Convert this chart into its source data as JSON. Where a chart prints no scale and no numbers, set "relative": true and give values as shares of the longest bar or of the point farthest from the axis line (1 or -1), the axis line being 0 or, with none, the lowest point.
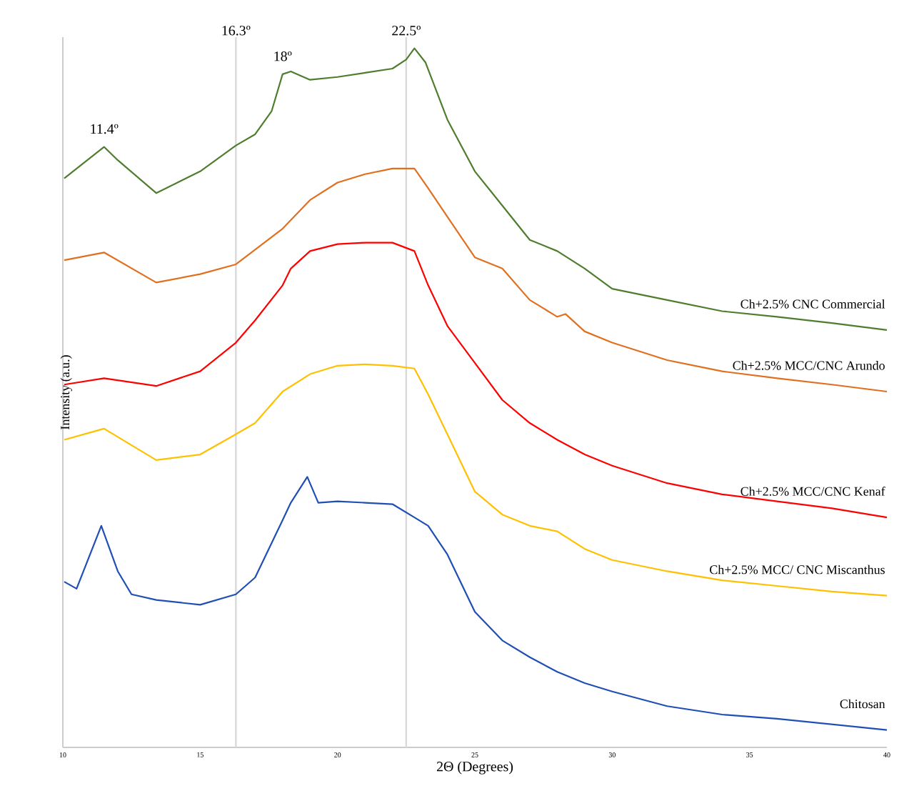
{
  "chart_data": {
    "type": "line",
    "relative": true,
    "xlabel": "2Θ (Degrees)",
    "ylabel": "Intensity (a.u.)",
    "xlim": [
      10,
      40
    ],
    "xticks": [
      10,
      15,
      20,
      25,
      30,
      35,
      40
    ],
    "series": [
      {
        "name": "Ch+2.5% CNC Commercial",
        "color": "#4e7d2e",
        "x": [
          10.05,
          11.5,
          12.0,
          13.4,
          15,
          16.3,
          17,
          17.6,
          18,
          18.3,
          19,
          20,
          21,
          22,
          22.5,
          22.8,
          23.2,
          24,
          25,
          26,
          27,
          28,
          29,
          30,
          32,
          34,
          36,
          38,
          40
        ],
        "values": [
          0.814,
          0.859,
          0.84,
          0.793,
          0.824,
          0.861,
          0.877,
          0.91,
          0.963,
          0.967,
          0.955,
          0.959,
          0.965,
          0.971,
          0.984,
          1.0,
          0.98,
          0.898,
          0.824,
          0.775,
          0.726,
          0.71,
          0.685,
          0.656,
          0.64,
          0.624,
          0.616,
          0.607,
          0.597
        ]
      },
      {
        "name": "Ch+2.5% MCC/CNC Arundo",
        "color": "#e07020",
        "x": [
          10.05,
          11.5,
          13.4,
          15,
          16.3,
          18,
          19,
          20,
          21,
          22,
          22.8,
          23.3,
          24,
          25,
          26,
          27,
          28,
          28.3,
          29,
          30,
          32,
          34,
          36,
          38,
          40
        ],
        "values": [
          0.697,
          0.708,
          0.665,
          0.677,
          0.691,
          0.742,
          0.783,
          0.808,
          0.82,
          0.828,
          0.828,
          0.8,
          0.759,
          0.701,
          0.685,
          0.64,
          0.616,
          0.62,
          0.595,
          0.579,
          0.554,
          0.538,
          0.528,
          0.519,
          0.509
        ]
      },
      {
        "name": "Ch+2.5% MCC/CNC Kenaf",
        "color": "#ff0000",
        "x": [
          10.05,
          11.5,
          13.4,
          15,
          16.3,
          17,
          18,
          18.3,
          19,
          20,
          21,
          22,
          22.8,
          23.3,
          24,
          25,
          26,
          27,
          28,
          29,
          30,
          32,
          34,
          36,
          38,
          40
        ],
        "values": [
          0.519,
          0.528,
          0.517,
          0.538,
          0.579,
          0.611,
          0.661,
          0.685,
          0.71,
          0.72,
          0.722,
          0.722,
          0.71,
          0.661,
          0.603,
          0.55,
          0.497,
          0.464,
          0.44,
          0.419,
          0.403,
          0.378,
          0.362,
          0.352,
          0.342,
          0.329
        ]
      },
      {
        "name": "Ch+2.5% MCC/ CNC Miscanthus",
        "color": "#ffc000",
        "x": [
          10.05,
          11.5,
          13.4,
          15,
          16.3,
          17,
          18,
          19,
          20,
          21,
          22,
          22.8,
          23.3,
          24,
          25,
          26,
          27,
          28,
          29,
          30,
          32,
          34,
          36,
          38,
          40
        ],
        "values": [
          0.44,
          0.456,
          0.411,
          0.419,
          0.448,
          0.464,
          0.509,
          0.534,
          0.546,
          0.548,
          0.546,
          0.542,
          0.505,
          0.448,
          0.366,
          0.333,
          0.317,
          0.309,
          0.284,
          0.268,
          0.252,
          0.239,
          0.231,
          0.223,
          0.217
        ]
      },
      {
        "name": "Chitosan",
        "color": "#1f4fb5",
        "x": [
          10.05,
          10.5,
          11.4,
          12,
          12.5,
          13.4,
          15,
          16.3,
          17,
          18,
          18.3,
          18.9,
          19.3,
          20,
          21,
          22,
          22.8,
          23.3,
          24,
          25,
          26,
          27,
          28,
          29,
          30,
          32,
          34,
          36,
          38,
          40
        ],
        "values": [
          0.237,
          0.227,
          0.317,
          0.252,
          0.219,
          0.211,
          0.204,
          0.219,
          0.243,
          0.325,
          0.35,
          0.387,
          0.35,
          0.352,
          0.35,
          0.348,
          0.329,
          0.317,
          0.276,
          0.194,
          0.153,
          0.129,
          0.108,
          0.092,
          0.08,
          0.059,
          0.047,
          0.041,
          0.033,
          0.025
        ]
      }
    ],
    "ref_lines": [
      {
        "axis": "x",
        "value": 16.3,
        "label": "16.3º",
        "color": "#d9d9d9"
      },
      {
        "axis": "x",
        "value": 22.5,
        "label": "22.5º",
        "color": "#d9d9d9"
      }
    ],
    "annotations": [
      {
        "text": "11.4º",
        "x": 11.5,
        "y": 0.859
      },
      {
        "text": "18º",
        "x": 18,
        "y": 0.963
      }
    ]
  }
}
